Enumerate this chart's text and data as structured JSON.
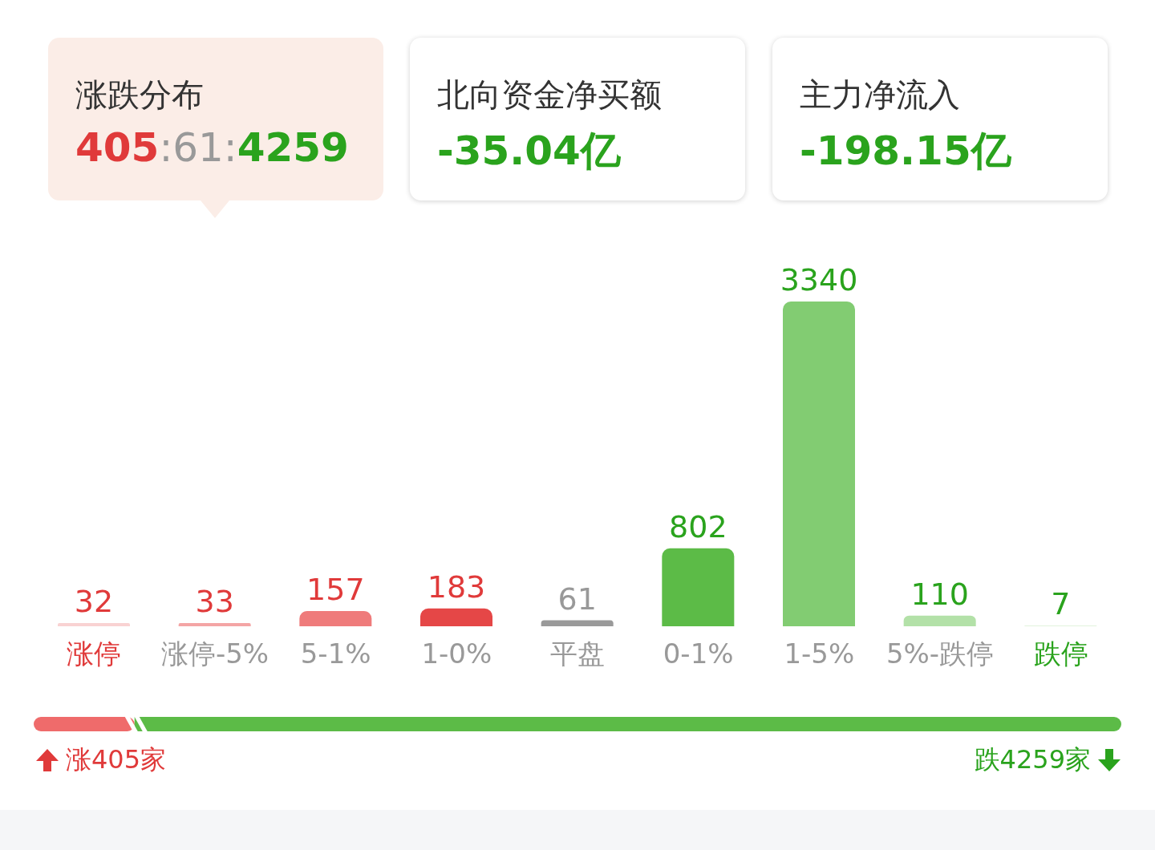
{
  "chart_data": [
    {
      "type": "other",
      "title": "涨跌分布",
      "annotations": [
        "405:61:4259"
      ],
      "colors": [
        "#e03a3a",
        "#999999",
        "#2aa31d"
      ]
    },
    {
      "type": "other",
      "title": "北向资金净买额",
      "annotations": [
        "-35.04亿"
      ],
      "colors": [
        "#2aa31d"
      ]
    },
    {
      "type": "other",
      "title": "主力净流入",
      "annotations": [
        "-198.15亿"
      ],
      "colors": [
        "#2aa31d"
      ]
    },
    {
      "type": "bar",
      "categories": [
        "涨停",
        "涨停-5%",
        "5-1%",
        "1-0%",
        "平盘",
        "0-1%",
        "1-5%",
        "5%-跌停",
        "跌停"
      ],
      "values": [
        32,
        33,
        157,
        183,
        61,
        802,
        3340,
        110,
        7
      ],
      "colors": [
        "#f9d2d2",
        "#f4a5a5",
        "#ef7b7b",
        "#e54747",
        "#9a9a9a",
        "#5cbb47",
        "#82cc72",
        "#b3e1a8",
        "#d8f0d2"
      ],
      "data_labels": true,
      "annotations": [
        "涨405家",
        "跌4259家"
      ]
    }
  ]
}
